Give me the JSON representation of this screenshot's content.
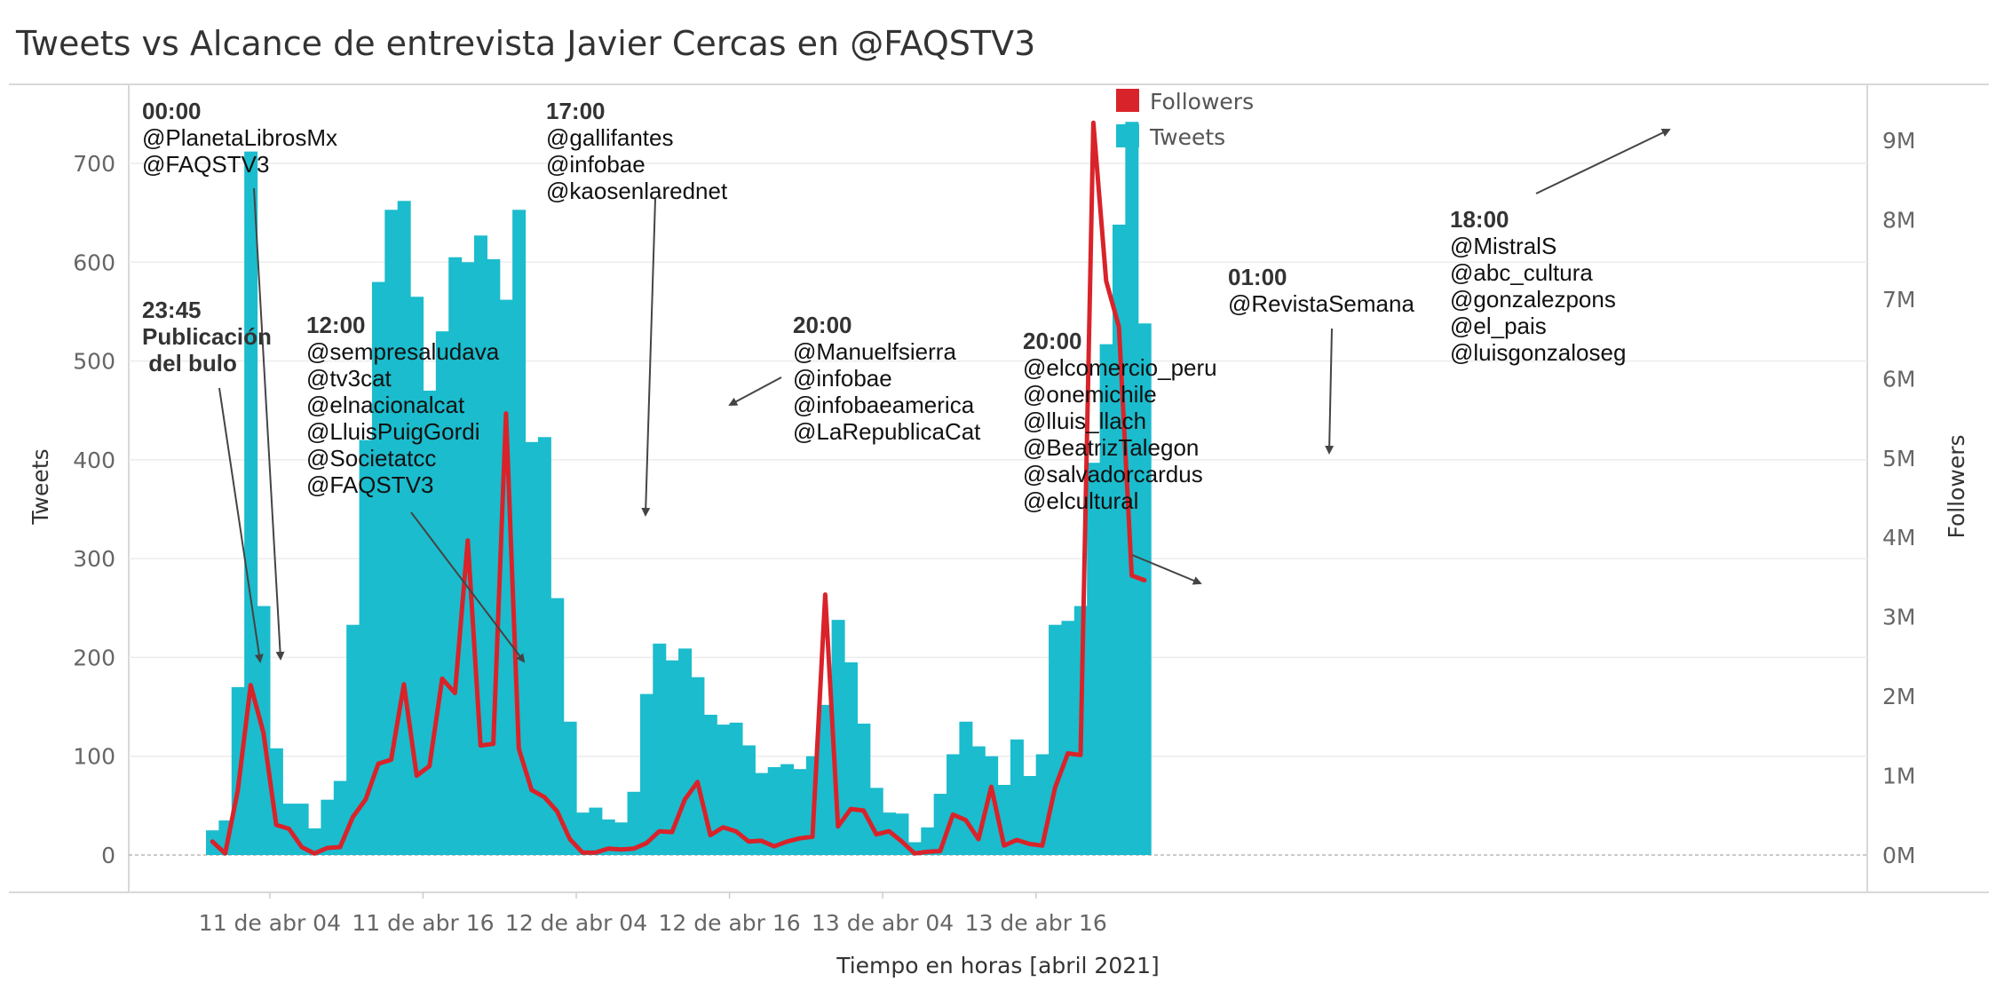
{
  "chart_data": {
    "type": "bar",
    "title": "Tweets vs Alcance  de entrevista Javier Cercas en @FAQSTV3",
    "xlabel": "Tiempo en horas [abril 2021]",
    "ylabel": "Tweets",
    "y2label": "Followers",
    "x_tick_labels": [
      "11 de abr 04",
      "11 de abr 16",
      "12 de abr 04",
      "12 de abr 16",
      "13 de abr 04",
      "13 de abr 16"
    ],
    "y_ticks": [
      0,
      100,
      200,
      300,
      400,
      500,
      600,
      700
    ],
    "y2_ticks": [
      "0M",
      "1M",
      "2M",
      "3M",
      "4M",
      "5M",
      "6M",
      "7M",
      "8M",
      "9M"
    ],
    "ylim": [
      0,
      760
    ],
    "y2lim": [
      0,
      9300000
    ],
    "legend_position": "top-center",
    "colors": {
      "tweets": "#1BBCCD",
      "followers": "#D9232A"
    },
    "series": [
      {
        "name": "Tweets",
        "kind": "bar",
        "start": "10 abr 23:00",
        "step_hours": 1,
        "values": [
          25,
          35,
          170,
          712,
          252,
          108,
          52,
          52,
          27,
          56,
          75,
          233,
          420,
          580,
          653,
          662,
          565,
          470,
          530,
          605,
          600,
          627,
          603,
          562,
          653,
          418,
          423,
          260,
          135,
          43,
          48,
          36,
          33,
          64,
          163,
          214,
          197,
          209,
          180,
          142,
          132,
          134,
          111,
          83,
          89,
          92,
          87,
          100,
          152,
          238,
          195,
          133,
          68,
          43,
          42,
          13,
          28,
          62,
          102,
          135,
          110,
          100,
          71,
          117,
          80,
          102,
          233,
          237,
          252,
          397,
          517,
          638,
          742,
          538
        ]
      },
      {
        "name": "Followers",
        "kind": "line",
        "start": "10 abr 23:00",
        "step_hours": 1,
        "values": [
          170000,
          20000,
          820000,
          2140000,
          1540000,
          380000,
          330000,
          100000,
          20000,
          90000,
          100000,
          480000,
          700000,
          1150000,
          1200000,
          2150000,
          1000000,
          1120000,
          2220000,
          2040000,
          3960000,
          1380000,
          1400000,
          5560000,
          1340000,
          820000,
          730000,
          550000,
          200000,
          30000,
          30000,
          80000,
          70000,
          80000,
          150000,
          300000,
          290000,
          700000,
          920000,
          250000,
          350000,
          300000,
          170000,
          180000,
          110000,
          170000,
          210000,
          230000,
          3280000,
          360000,
          580000,
          560000,
          260000,
          300000,
          170000,
          20000,
          40000,
          50000,
          510000,
          440000,
          200000,
          860000,
          120000,
          190000,
          140000,
          120000,
          850000,
          1280000,
          1260000,
          9220000,
          7230000,
          6650000,
          3520000,
          3460000
        ]
      }
    ],
    "annotations": [
      {
        "heading": "00:00",
        "lines": [
          "@PlanetaLibrosMx",
          "@FAQSTV3"
        ]
      },
      {
        "heading": "23:45",
        "lines": [
          "Publicación",
          " del bulo"
        ]
      },
      {
        "heading": "12:00",
        "lines": [
          "@sempresaludava",
          "@tv3cat",
          "@elnacionalcat",
          "@LluisPuigGordi",
          "@Societatcc",
          "@FAQSTV3"
        ]
      },
      {
        "heading": "17:00",
        "lines": [
          "@gallifantes",
          "@infobae",
          "@kaosenlarednet"
        ]
      },
      {
        "heading": "20:00",
        "lines": [
          "@Manuelfsierra",
          "@infobae",
          "@infobaeamerica",
          "@LaRepublicaCat"
        ]
      },
      {
        "heading": "20:00",
        "lines": [
          "@elcomercio_peru",
          "@onemichile",
          "@lluis_llach",
          "@BeatrizTalegon",
          "@salvadorcardus",
          "@elcultural"
        ]
      },
      {
        "heading": "01:00",
        "lines": [
          "@RevistaSemana"
        ]
      },
      {
        "heading": "18:00",
        "lines": [
          "@MistralS",
          "@abc_cultura",
          "@gonzalezpons",
          "@el_pais",
          "@luisgonzaloseg"
        ]
      }
    ]
  }
}
